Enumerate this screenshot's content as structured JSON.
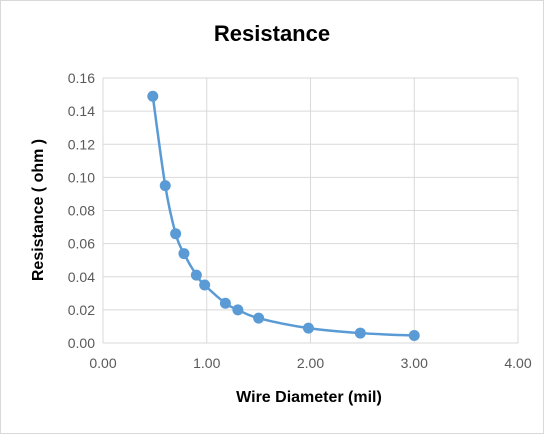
{
  "chart_data": {
    "type": "scatter",
    "title": "Resistance",
    "xlabel": "Wire Diameter (mil)",
    "ylabel": "Resistance ( ohm )",
    "xlim": [
      0,
      4
    ],
    "ylim": [
      0,
      0.16
    ],
    "x_ticks": [
      "0.00",
      "1.00",
      "2.00",
      "3.00",
      "4.00"
    ],
    "y_ticks": [
      "0.00",
      "0.02",
      "0.04",
      "0.06",
      "0.08",
      "0.10",
      "0.12",
      "0.14",
      "0.16"
    ],
    "grid": "vertical and horizontal major gridlines",
    "smooth_line": true,
    "series": [
      {
        "color": "#5b9bd5",
        "x": [
          0.48,
          0.6,
          0.7,
          0.78,
          0.9,
          0.98,
          1.18,
          1.3,
          1.5,
          1.98,
          2.48,
          3.0
        ],
        "y": [
          0.149,
          0.095,
          0.066,
          0.054,
          0.041,
          0.035,
          0.024,
          0.02,
          0.015,
          0.009,
          0.006,
          0.0045
        ]
      }
    ]
  }
}
